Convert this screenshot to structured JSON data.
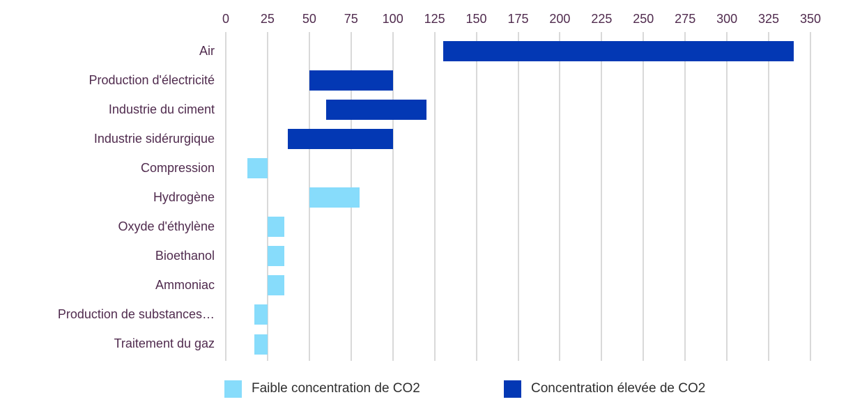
{
  "chart_data": {
    "type": "bar",
    "orientation": "horizontal-range",
    "title": "",
    "x_axis": {
      "position": "top",
      "min": 0,
      "max": 350,
      "ticks": [
        0,
        25,
        50,
        75,
        100,
        125,
        150,
        175,
        200,
        225,
        250,
        275,
        300,
        325,
        350
      ],
      "grid": true
    },
    "categories": [
      "Air",
      "Production d'électricité",
      "Industrie du ciment",
      "Industrie sidérurgique",
      "Compression",
      "Hydrogène",
      "Oxyde d'éthylène",
      "Bioethanol",
      "Ammoniac",
      "Production de substances…",
      "Traitement du gaz"
    ],
    "series": [
      {
        "name": "Faible concentration de CO2",
        "color": "#87DCFB"
      },
      {
        "name": "Concentration élevée de CO2",
        "color": "#0338B4"
      }
    ],
    "bars": [
      {
        "category": "Air",
        "series": 1,
        "range": [
          130,
          340
        ]
      },
      {
        "category": "Production d'électricité",
        "series": 1,
        "range": [
          50,
          100
        ]
      },
      {
        "category": "Industrie du ciment",
        "series": 1,
        "range": [
          60,
          120
        ]
      },
      {
        "category": "Industrie sidérurgique",
        "series": 1,
        "range": [
          37,
          100
        ]
      },
      {
        "category": "Compression",
        "series": 0,
        "range": [
          13,
          25
        ]
      },
      {
        "category": "Hydrogène",
        "series": 0,
        "range": [
          50,
          80
        ]
      },
      {
        "category": "Oxyde d'éthylène",
        "series": 0,
        "range": [
          25,
          35
        ]
      },
      {
        "category": "Bioethanol",
        "series": 0,
        "range": [
          25,
          35
        ]
      },
      {
        "category": "Ammoniac",
        "series": 0,
        "range": [
          25,
          35
        ]
      },
      {
        "category": "Production de substances…",
        "series": 0,
        "range": [
          17,
          25
        ]
      },
      {
        "category": "Traitement du gaz",
        "series": 0,
        "range": [
          17,
          25
        ]
      }
    ],
    "legend_position": "bottom"
  },
  "colors": {
    "low_series": "#87DCFB",
    "high_series": "#0338B4",
    "axis_text": "#502B4E",
    "legend_text": "#2F2F2F",
    "gridline": "#D9D9D9",
    "background": "#FFFFFF"
  }
}
